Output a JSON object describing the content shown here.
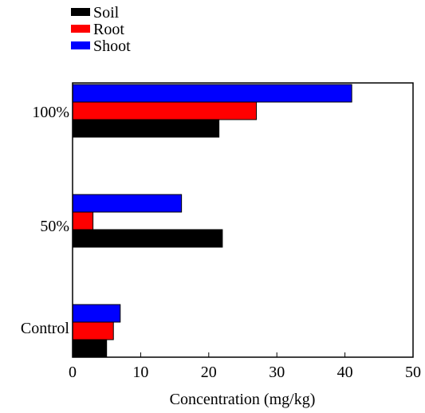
{
  "chart_data": {
    "type": "bar",
    "orientation": "horizontal",
    "title": "",
    "xlabel": "Concentration (mg/kg)",
    "ylabel": "",
    "xlim": [
      0,
      50
    ],
    "xticks": [
      "0",
      "10",
      "20",
      "30",
      "40",
      "50"
    ],
    "categories": [
      "Control",
      "50%",
      "100%"
    ],
    "legend_position": "top-left, above plot",
    "series": [
      {
        "name": "Soil",
        "color": "#000000",
        "values": [
          5,
          22,
          21.5
        ]
      },
      {
        "name": "Root",
        "color": "#ff0000",
        "values": [
          6,
          3,
          27
        ]
      },
      {
        "name": "Shoot",
        "color": "#0000ff",
        "values": [
          7,
          16,
          41
        ]
      }
    ]
  }
}
